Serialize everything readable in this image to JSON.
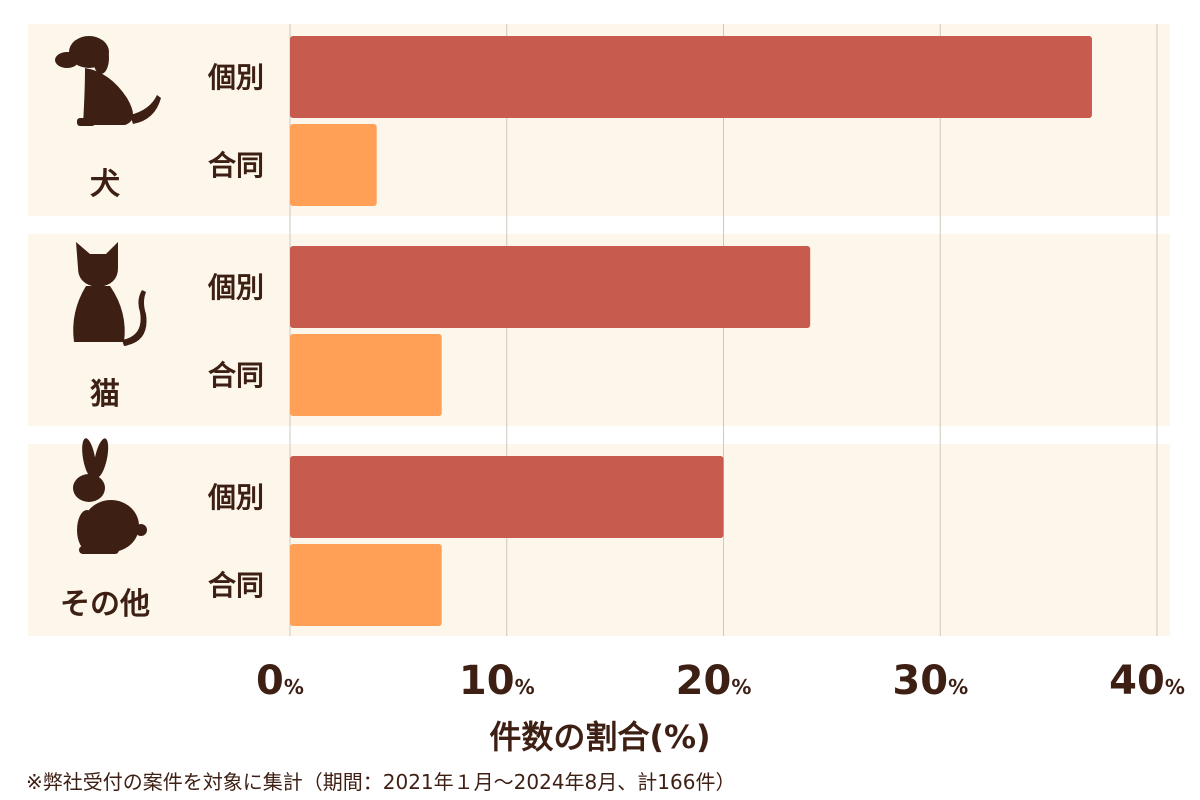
{
  "colors": {
    "individual": "#c75b4e",
    "joint": "#ffa056",
    "panel": "#fcf7ea",
    "text": "#3d1f14",
    "grid": "#cfc8bd"
  },
  "chart_data": {
    "type": "bar",
    "orientation": "horizontal",
    "groups": [
      {
        "label": "犬",
        "icon": "dog-icon"
      },
      {
        "label": "猫",
        "icon": "cat-icon"
      },
      {
        "label": "その他",
        "icon": "rabbit-icon"
      }
    ],
    "series": [
      {
        "name": "個別",
        "values": [
          37,
          24,
          20
        ]
      },
      {
        "name": "合同",
        "values": [
          4,
          7,
          7
        ]
      }
    ],
    "xlim": [
      0,
      40
    ],
    "xticks": [
      0,
      10,
      20,
      30,
      40
    ],
    "tick_suffix": "%",
    "xlabel": "件数の割合(%)",
    "grid": true
  },
  "footnote": "※弊社受付の案件を対象に集計（期間：2021年１月〜2024年8月、計166件）"
}
